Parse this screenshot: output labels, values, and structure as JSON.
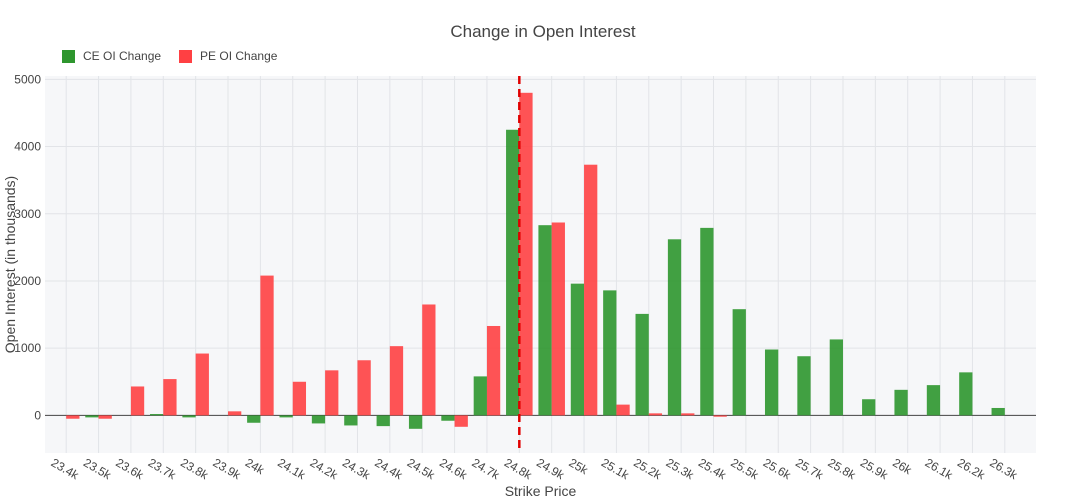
{
  "chart_data": {
    "type": "bar",
    "title": "Change in Open Interest",
    "xlabel": "Strike Price",
    "ylabel": "Open Interest (in thousands)",
    "ylim": [
      -560,
      5050
    ],
    "yticks": [
      0,
      1000,
      2000,
      3000,
      4000,
      5000
    ],
    "legend_position": "top-left",
    "grid": true,
    "categories": [
      "23.4k",
      "23.5k",
      "23.6k",
      "23.7k",
      "23.8k",
      "23.9k",
      "24k",
      "24.1k",
      "24.2k",
      "24.3k",
      "24.4k",
      "24.5k",
      "24.6k",
      "24.7k",
      "24.8k",
      "24.9k",
      "25k",
      "25.1k",
      "25.2k",
      "25.3k",
      "25.4k",
      "25.5k",
      "25.6k",
      "25.7k",
      "25.8k",
      "25.9k",
      "26k",
      "26.1k",
      "26.2k",
      "26.3k"
    ],
    "series": [
      {
        "name": "CE OI Change",
        "color": "#2e962e",
        "values": [
          0,
          -30,
          0,
          20,
          -30,
          0,
          -110,
          -30,
          -120,
          -150,
          -160,
          -200,
          -80,
          580,
          4250,
          2830,
          1960,
          1860,
          1510,
          2620,
          2790,
          1580,
          980,
          880,
          1130,
          240,
          380,
          450,
          640,
          110
        ]
      },
      {
        "name": "PE OI Change",
        "color": "#ff4043",
        "values": [
          -50,
          -50,
          430,
          540,
          920,
          60,
          2080,
          500,
          670,
          820,
          1030,
          1650,
          -170,
          1330,
          4800,
          2870,
          3730,
          160,
          30,
          30,
          -20,
          0,
          0,
          0,
          0,
          0,
          0,
          0,
          0,
          0
        ]
      }
    ],
    "reference_line": {
      "x_category": "24.8k",
      "color": "#e00000",
      "style": "dashed"
    }
  }
}
